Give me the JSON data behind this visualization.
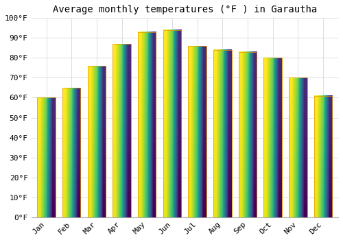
{
  "title": "Average monthly temperatures (°F ) in Garautha",
  "months": [
    "Jan",
    "Feb",
    "Mar",
    "Apr",
    "May",
    "Jun",
    "Jul",
    "Aug",
    "Sep",
    "Oct",
    "Nov",
    "Dec"
  ],
  "values": [
    60,
    65,
    76,
    87,
    93,
    94,
    86,
    84,
    83,
    80,
    70,
    61
  ],
  "bar_color_top": "#FFC820",
  "bar_color_bottom": "#F5A800",
  "bar_edge_color": "#E59A00",
  "background_color": "#FFFFFF",
  "grid_color": "#DDDDDD",
  "ylim": [
    0,
    100
  ],
  "yticks": [
    0,
    10,
    20,
    30,
    40,
    50,
    60,
    70,
    80,
    90,
    100
  ],
  "ytick_labels": [
    "0°F",
    "10°F",
    "20°F",
    "30°F",
    "40°F",
    "50°F",
    "60°F",
    "70°F",
    "80°F",
    "90°F",
    "100°F"
  ],
  "title_fontsize": 10,
  "tick_fontsize": 8,
  "font_family": "monospace",
  "bar_width": 0.72
}
